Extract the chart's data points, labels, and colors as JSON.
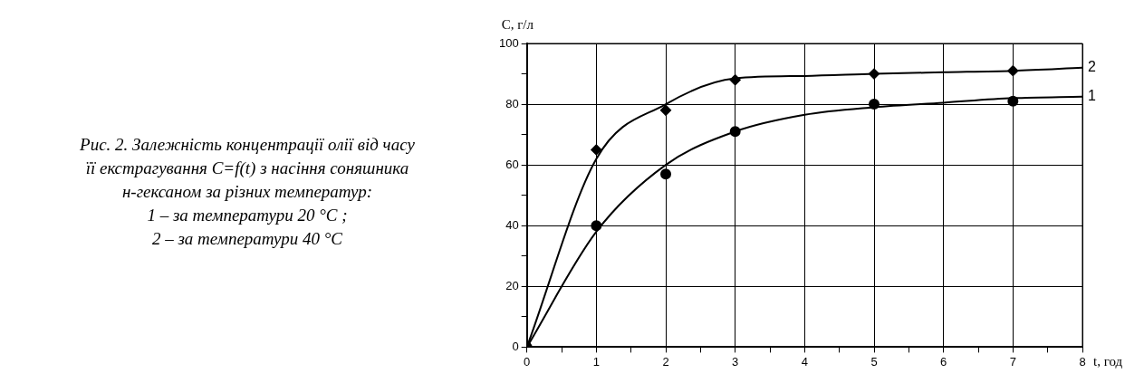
{
  "chart_data": {
    "type": "line",
    "title": "Рис. 2. Залежність концентрації олії від часу\nїї екстрагування C=f(t) з насіння соняшника\nн-гексаном за різних температур:\n1 – за температури 20 °C ;\n2 – за температури 40 °C",
    "xlabel": "t, год",
    "ylabel": "C, г/л",
    "xlim": [
      0,
      8
    ],
    "ylim": [
      0,
      100
    ],
    "xticks": [
      0,
      {
        "value": 0.5,
        "label": null
      },
      1,
      {
        "value": 1.5,
        "label": null
      },
      2,
      {
        "value": 2.5,
        "label": null
      },
      3,
      {
        "value": 3.5,
        "label": null
      },
      4,
      {
        "value": 4.5,
        "label": null
      },
      5,
      {
        "value": 5.5,
        "label": null
      },
      6,
      {
        "value": 6.5,
        "label": null
      },
      7,
      {
        "value": 7.5,
        "label": null
      },
      8
    ],
    "yticks": [
      0,
      {
        "value": 10,
        "label": null
      },
      20,
      {
        "value": 30,
        "label": null
      },
      40,
      {
        "value": 50,
        "label": null
      },
      60,
      {
        "value": 70,
        "label": null
      },
      80,
      {
        "value": 90,
        "label": null
      },
      100
    ],
    "grid": true,
    "legend": false,
    "series": [
      {
        "type": "scatter",
        "marker": "circle",
        "color": "#000000",
        "x": [
          0,
          1,
          2,
          3,
          5,
          7
        ],
        "values": [
          0,
          40,
          57,
          71,
          80,
          81
        ]
      },
      {
        "type": "scatter",
        "marker": "diamond",
        "color": "#000000",
        "x": [
          1,
          2,
          3,
          5,
          7
        ],
        "values": [
          65,
          78,
          88,
          90,
          91
        ]
      },
      {
        "name": "1",
        "marker": "none",
        "line_style": "solid",
        "color": "#000000",
        "x": [
          0,
          1,
          2,
          3,
          4,
          5,
          6,
          7,
          8
        ],
        "values": [
          0,
          38,
          60,
          71,
          76.5,
          79,
          80.5,
          82,
          82.5
        ]
      },
      {
        "name": "2",
        "marker": "none",
        "line_style": "solid",
        "color": "#000000",
        "x": [
          0,
          1,
          2,
          3,
          4,
          5,
          6,
          7,
          8
        ],
        "values": [
          0,
          62,
          80,
          88.5,
          89.3,
          90,
          90.5,
          91,
          92
        ]
      }
    ]
  }
}
